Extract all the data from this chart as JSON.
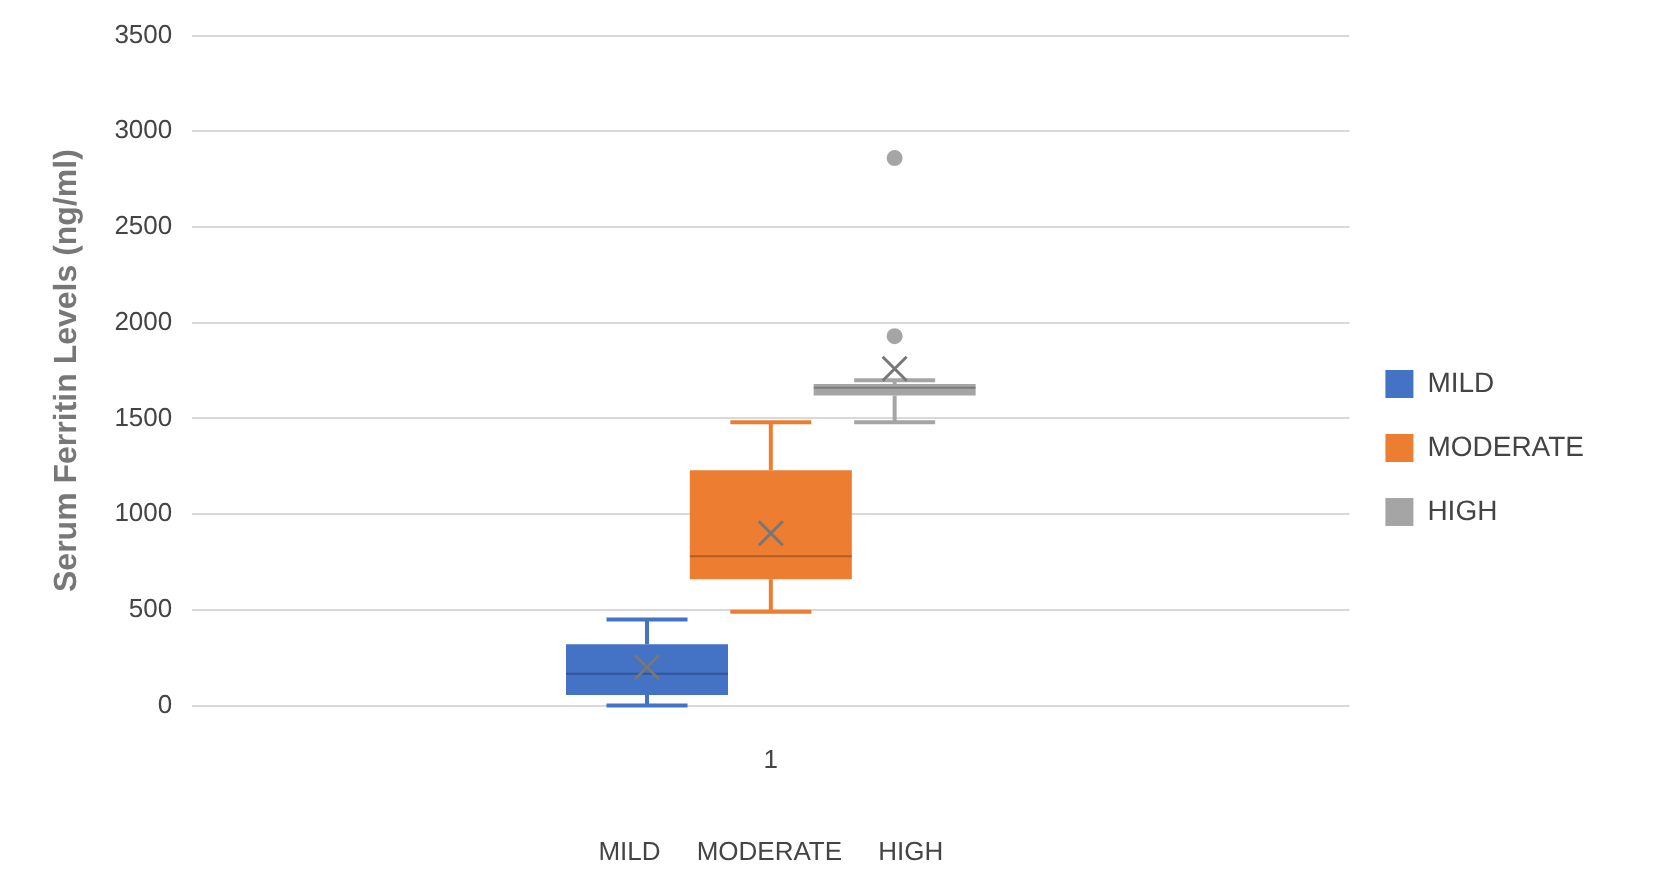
{
  "chart_data": {
    "type": "box",
    "ylabel": "Serum Ferritin Levels (ng/ml)",
    "xlabel": "MILD     MODERATE     HIGH",
    "categories": [
      "1"
    ],
    "series": [
      {
        "name": "MILD",
        "color": "#4472c4",
        "boxes": [
          {
            "low": 0,
            "q1": 55,
            "median": 167,
            "q3": 320,
            "high": 450,
            "mean": 200
          }
        ]
      },
      {
        "name": "MODERATE",
        "color": "#ed7d31",
        "boxes": [
          {
            "low": 490,
            "q1": 660,
            "median": 780,
            "q3": 1230,
            "high": 1480,
            "mean": 900
          }
        ]
      },
      {
        "name": "HIGH",
        "color": "#a5a5a5",
        "boxes": [
          {
            "low": 1480,
            "q1": 1620,
            "median": 1660,
            "q3": 1680,
            "high": 1700,
            "mean": 1760,
            "outliers": [
              1930,
              2860
            ]
          }
        ]
      }
    ],
    "ylim": [
      0,
      3500
    ],
    "yticks": [
      0,
      500,
      1000,
      1500,
      2000,
      2500,
      3000,
      3500
    ],
    "grid": "y",
    "legend": "right"
  }
}
